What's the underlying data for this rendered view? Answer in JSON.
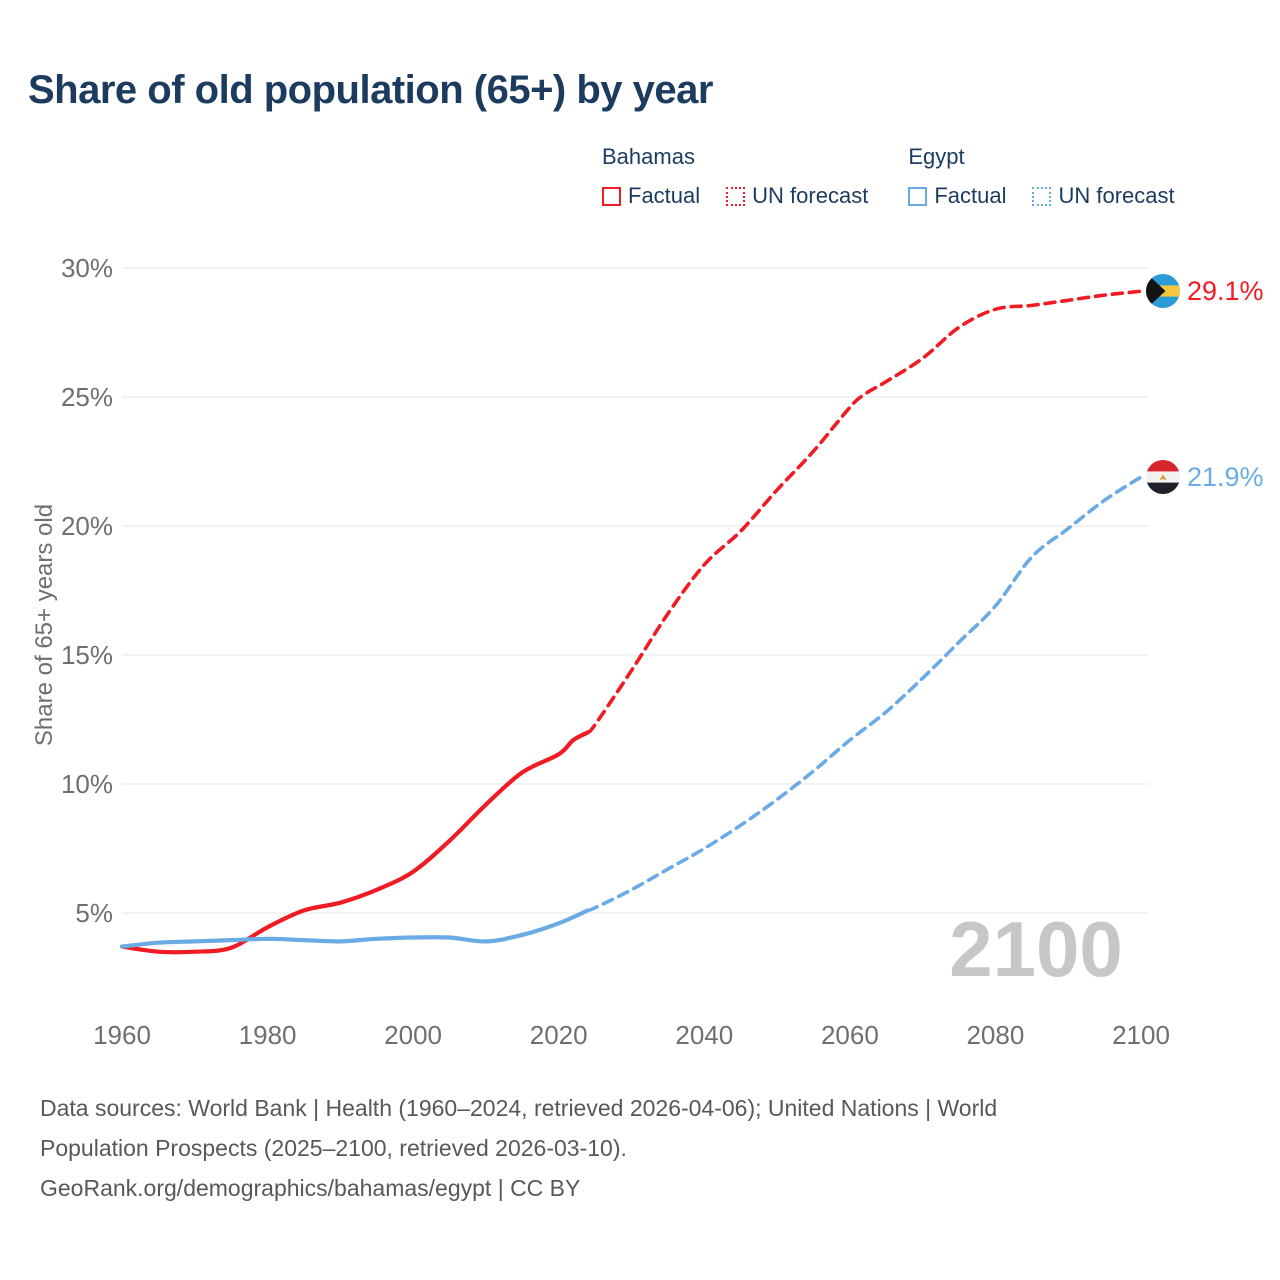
{
  "title": "Share of old population (65+) by year",
  "colors": {
    "bahamas": "#f01b23",
    "egypt": "#6aabe6",
    "title_text": "#1c3b5f",
    "axis_text": "#6f6f6f",
    "gridline": "#e9e9eb",
    "watermark": "#c7c7c7",
    "footer_text": "#585858"
  },
  "legend": {
    "groups": [
      {
        "name": "Bahamas",
        "color": "#f01b23",
        "items": [
          {
            "label": "Factual",
            "style": "solid"
          },
          {
            "label": "UN forecast",
            "style": "dotted"
          }
        ]
      },
      {
        "name": "Egypt",
        "color": "#6aabe6",
        "items": [
          {
            "label": "Factual",
            "style": "solid"
          },
          {
            "label": "UN forecast",
            "style": "dotted"
          }
        ]
      }
    ]
  },
  "watermark": "2100",
  "end_labels": {
    "bahamas": "29.1%",
    "egypt": "21.9%"
  },
  "footer": {
    "lines": [
      "Data sources: World Bank | Health (1960–2024, retrieved 2026-04-06); United Nations | World",
      "Population Prospects (2025–2100, retrieved 2026-03-10).",
      "GeoRank.org/demographics/bahamas/egypt | CC BY"
    ]
  },
  "chart_data": {
    "type": "line",
    "title": "Share of old population (65+) by year",
    "xlabel": "",
    "ylabel": "Share of 65+ years old",
    "xlim": [
      1960,
      2100
    ],
    "ylim": [
      2.5,
      31.5
    ],
    "x_ticks": [
      1960,
      1980,
      2000,
      2020,
      2040,
      2060,
      2080,
      2100
    ],
    "y_ticks": [
      5,
      10,
      15,
      20,
      25,
      30
    ],
    "y_tick_suffix": "%",
    "grid": "horizontal",
    "legend_position": "top-right",
    "series": [
      {
        "name": "Bahamas Factual",
        "color": "#f01b23",
        "dashed": false,
        "x": [
          1960,
          1965,
          1970,
          1975,
          1980,
          1985,
          1990,
          1995,
          2000,
          2005,
          2010,
          2015,
          2020,
          2022,
          2024
        ],
        "y": [
          3.7,
          3.5,
          3.5,
          3.65,
          4.45,
          5.1,
          5.4,
          5.9,
          6.6,
          7.8,
          9.2,
          10.45,
          11.15,
          11.7,
          12.0
        ]
      },
      {
        "name": "Bahamas UN forecast",
        "color": "#f01b23",
        "dashed": true,
        "x": [
          2024,
          2025,
          2030,
          2035,
          2040,
          2045,
          2050,
          2055,
          2060,
          2062,
          2065,
          2070,
          2075,
          2080,
          2085,
          2090,
          2095,
          2100
        ],
        "y": [
          12.0,
          12.3,
          14.4,
          16.6,
          18.5,
          19.8,
          21.4,
          22.9,
          24.6,
          25.1,
          25.6,
          26.5,
          27.7,
          28.4,
          28.55,
          28.75,
          28.95,
          29.1
        ]
      },
      {
        "name": "Egypt Factual",
        "color": "#6aabe6",
        "dashed": false,
        "x": [
          1960,
          1965,
          1970,
          1975,
          1980,
          1985,
          1990,
          1995,
          2000,
          2005,
          2010,
          2015,
          2020,
          2024
        ],
        "y": [
          3.7,
          3.85,
          3.9,
          3.95,
          4.0,
          3.95,
          3.9,
          4.0,
          4.05,
          4.05,
          3.9,
          4.15,
          4.6,
          5.1
        ]
      },
      {
        "name": "Egypt UN forecast",
        "color": "#6aabe6",
        "dashed": true,
        "x": [
          2024,
          2025,
          2030,
          2035,
          2040,
          2045,
          2050,
          2055,
          2060,
          2065,
          2070,
          2075,
          2080,
          2085,
          2090,
          2095,
          2100
        ],
        "y": [
          5.1,
          5.2,
          5.9,
          6.7,
          7.5,
          8.4,
          9.4,
          10.5,
          11.7,
          12.8,
          14.1,
          15.5,
          16.9,
          18.8,
          19.9,
          21.0,
          21.9
        ]
      }
    ]
  }
}
